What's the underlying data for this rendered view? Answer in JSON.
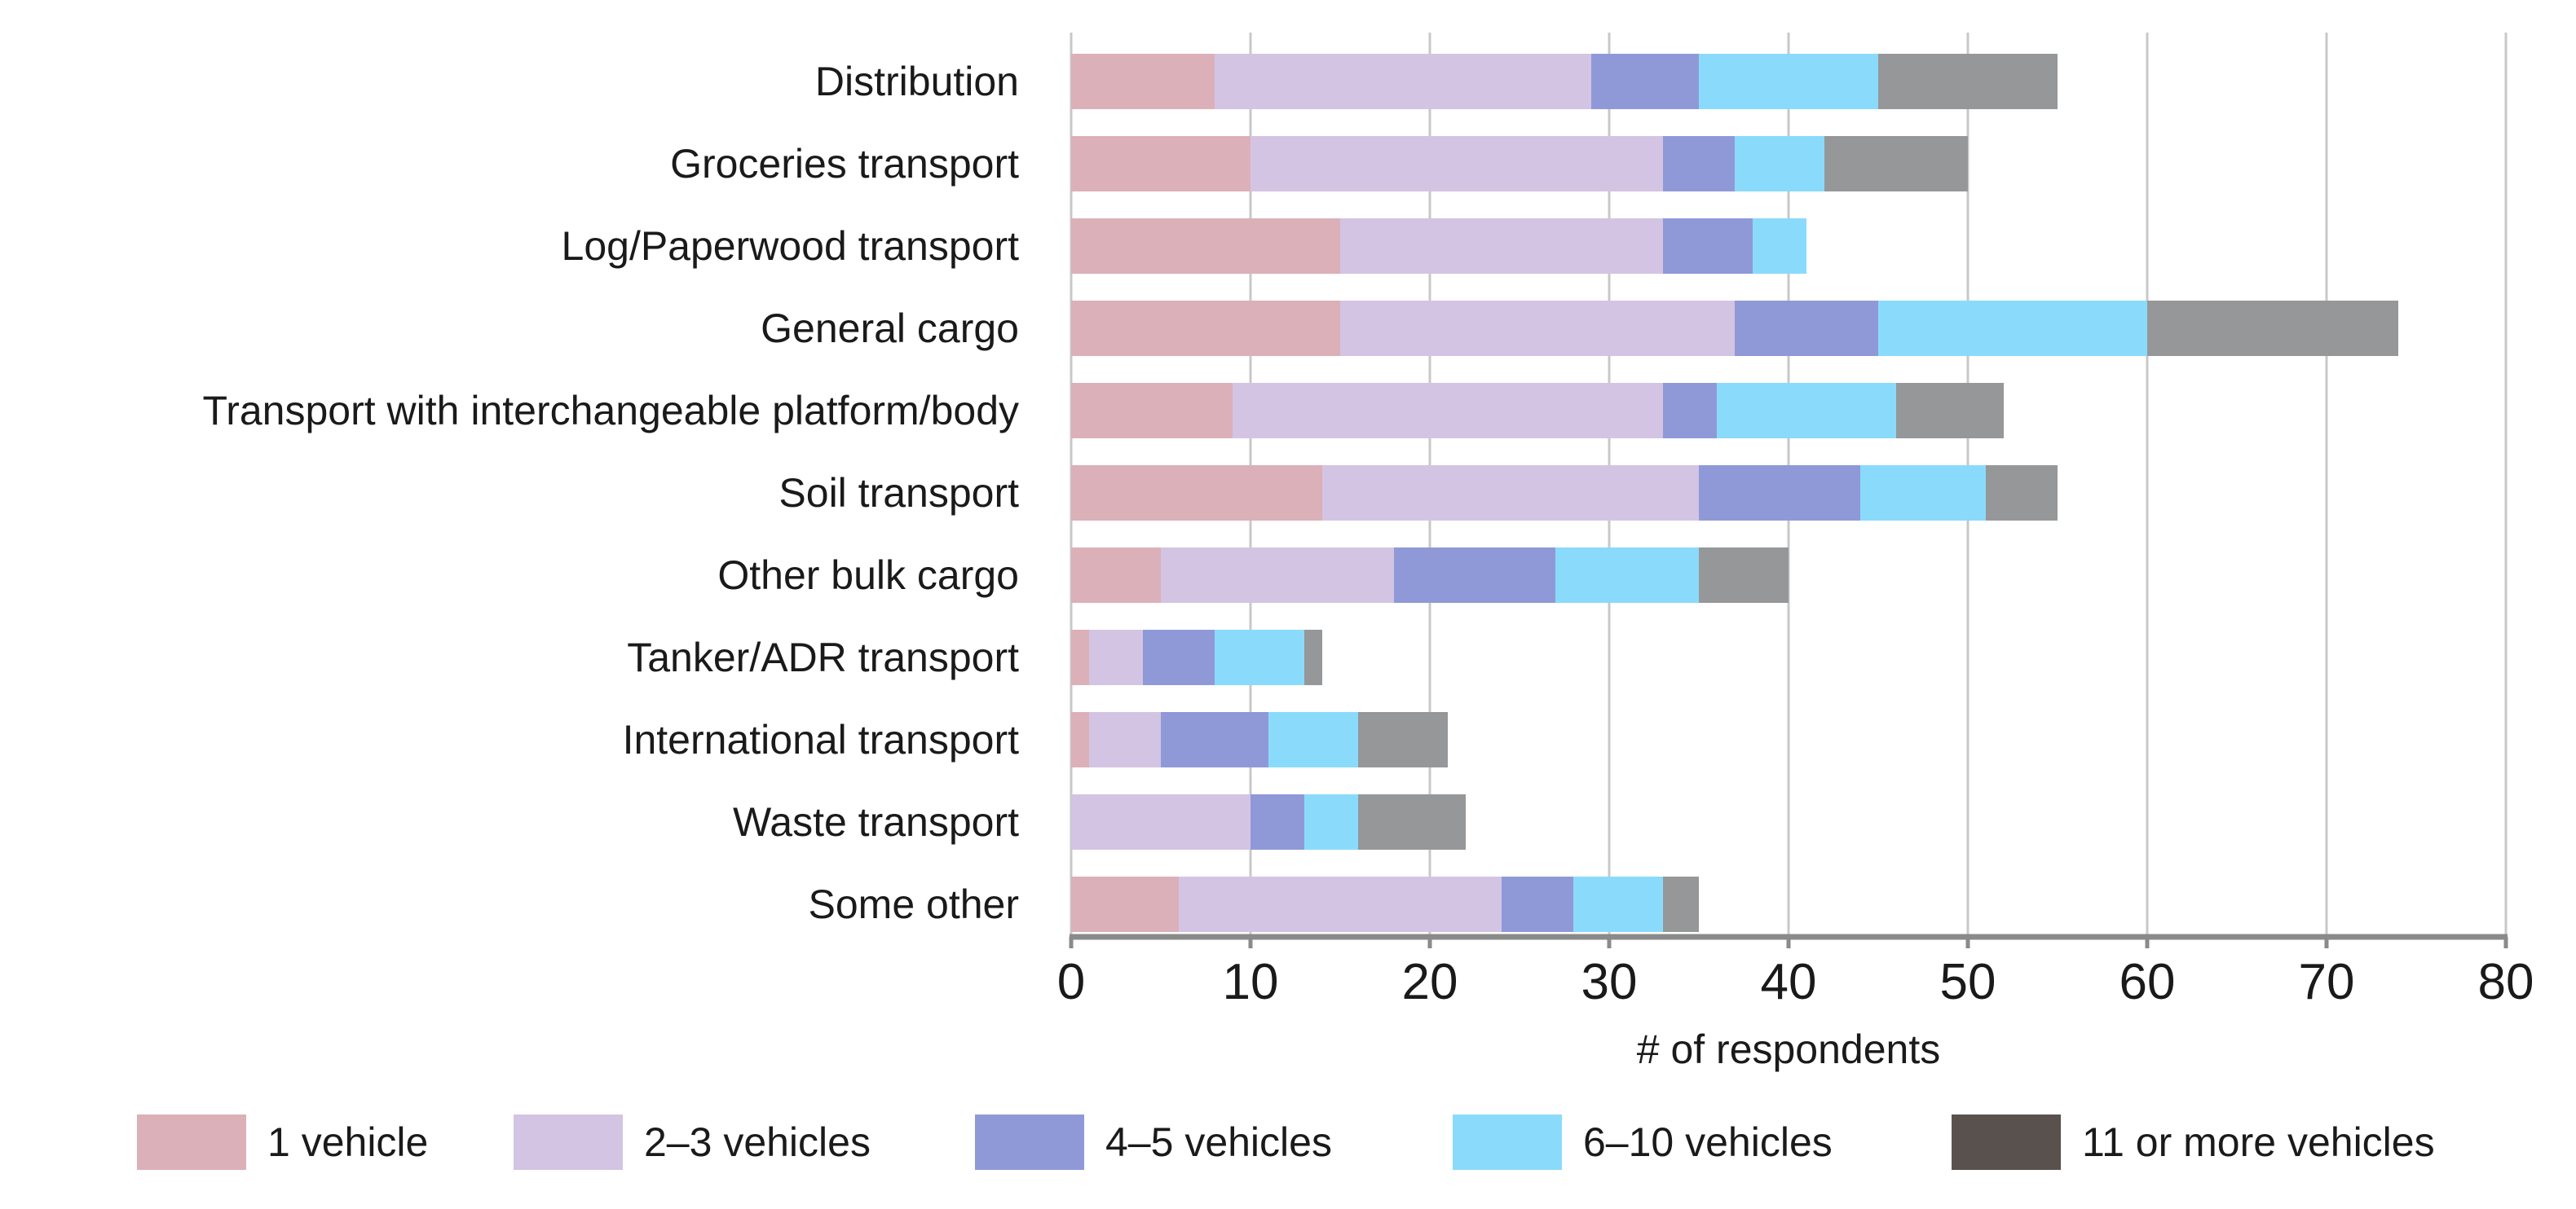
{
  "chart_data": {
    "type": "bar",
    "orientation": "horizontal",
    "stacked": true,
    "title": "",
    "xlabel": "# of respondents",
    "ylabel": "",
    "xlim": [
      0,
      80
    ],
    "xticks": [
      0,
      10,
      20,
      30,
      40,
      50,
      60,
      70,
      80
    ],
    "grid": "vertical",
    "legend_position": "bottom",
    "categories": [
      "Distribution",
      "Groceries transport",
      "Log/Paperwood transport",
      "General cargo",
      "Transport with interchangeable platform/body",
      "Soil transport",
      "Other bulk cargo",
      "Tanker/ADR transport",
      "International transport",
      "Waste transport",
      "Some other"
    ],
    "series": [
      {
        "name": "1 vehicle",
        "color": "#dcb0b9",
        "values": [
          8,
          10,
          15,
          15,
          9,
          14,
          5,
          1,
          1,
          0,
          6
        ]
      },
      {
        "name": "2–3 vehicles",
        "color": "#d3c4e4",
        "values": [
          21,
          23,
          18,
          22,
          24,
          21,
          13,
          3,
          4,
          10,
          18
        ]
      },
      {
        "name": "4–5 vehicles",
        "color": "#9099d7",
        "values": [
          6,
          4,
          5,
          8,
          3,
          9,
          9,
          4,
          6,
          3,
          4
        ]
      },
      {
        "name": "6–10 vehicles",
        "color": "#8adbfb",
        "values": [
          10,
          5,
          3,
          15,
          10,
          7,
          8,
          5,
          5,
          3,
          5
        ]
      },
      {
        "name": "11 or more vehicles",
        "color": "#969799",
        "legend_color": "#58514d",
        "values": [
          10,
          8,
          0,
          14,
          6,
          4,
          5,
          1,
          5,
          6,
          2
        ]
      }
    ]
  }
}
